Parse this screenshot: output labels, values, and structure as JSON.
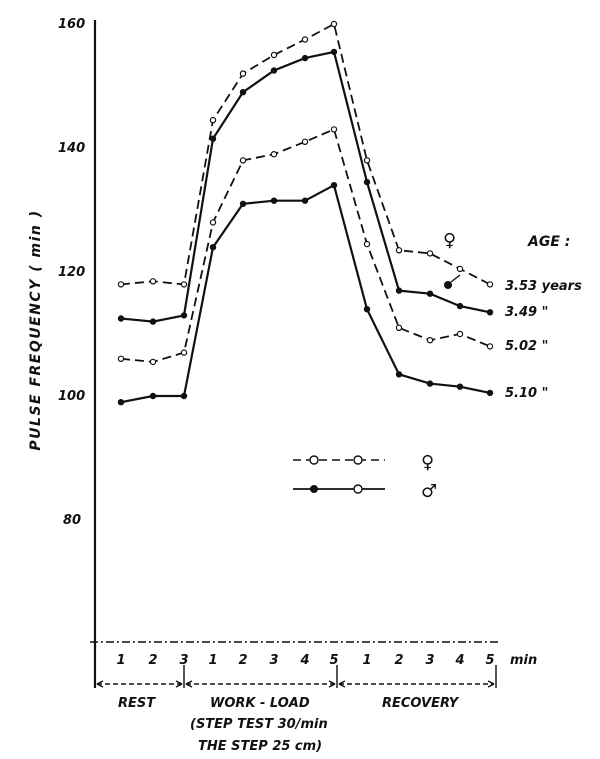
{
  "chart_data": {
    "type": "line",
    "ylabel": "PULSE FREQUENCY ( min )",
    "y_ticks": [
      "160",
      "140",
      "120",
      "100",
      "80"
    ],
    "ylim": [
      60,
      160
    ],
    "x_unit": "min",
    "x_tick_labels": [
      "1",
      "2",
      "3",
      "1",
      "2",
      "3",
      "4",
      "5",
      "1",
      "2",
      "3",
      "4",
      "5"
    ],
    "phases": {
      "rest": "REST",
      "work": "WORK - LOAD",
      "recovery": "RECOVERY",
      "note1": "(STEP TEST 30/min",
      "note2": "THE STEP 25 cm)"
    },
    "age_header": "AGE :",
    "legend": {
      "female_symbol": "♀",
      "male_symbol": "♂"
    },
    "series": [
      {
        "label": "3.53 years",
        "sex": "female",
        "style": "dashed",
        "values": [
          118,
          118.5,
          118,
          144.5,
          152,
          155,
          157.5,
          160,
          138,
          123.5,
          123,
          120.5,
          118
        ]
      },
      {
        "label": "3.49 \"",
        "sex": "male",
        "style": "solid",
        "values": [
          112.5,
          112,
          113,
          141.5,
          149,
          152.5,
          154.5,
          155.5,
          134.5,
          117,
          116.5,
          114.5,
          113.5
        ]
      },
      {
        "label": "5.02 \"",
        "sex": "female",
        "style": "dashed",
        "values": [
          106,
          105.5,
          107,
          128,
          138,
          139,
          141,
          143,
          124.5,
          111,
          109,
          110,
          108
        ]
      },
      {
        "label": "5.10 \"",
        "sex": "male",
        "style": "solid",
        "values": [
          99,
          100,
          100,
          124,
          131,
          131.5,
          131.5,
          134,
          114,
          103.5,
          102,
          101.5,
          100.5
        ]
      }
    ]
  }
}
